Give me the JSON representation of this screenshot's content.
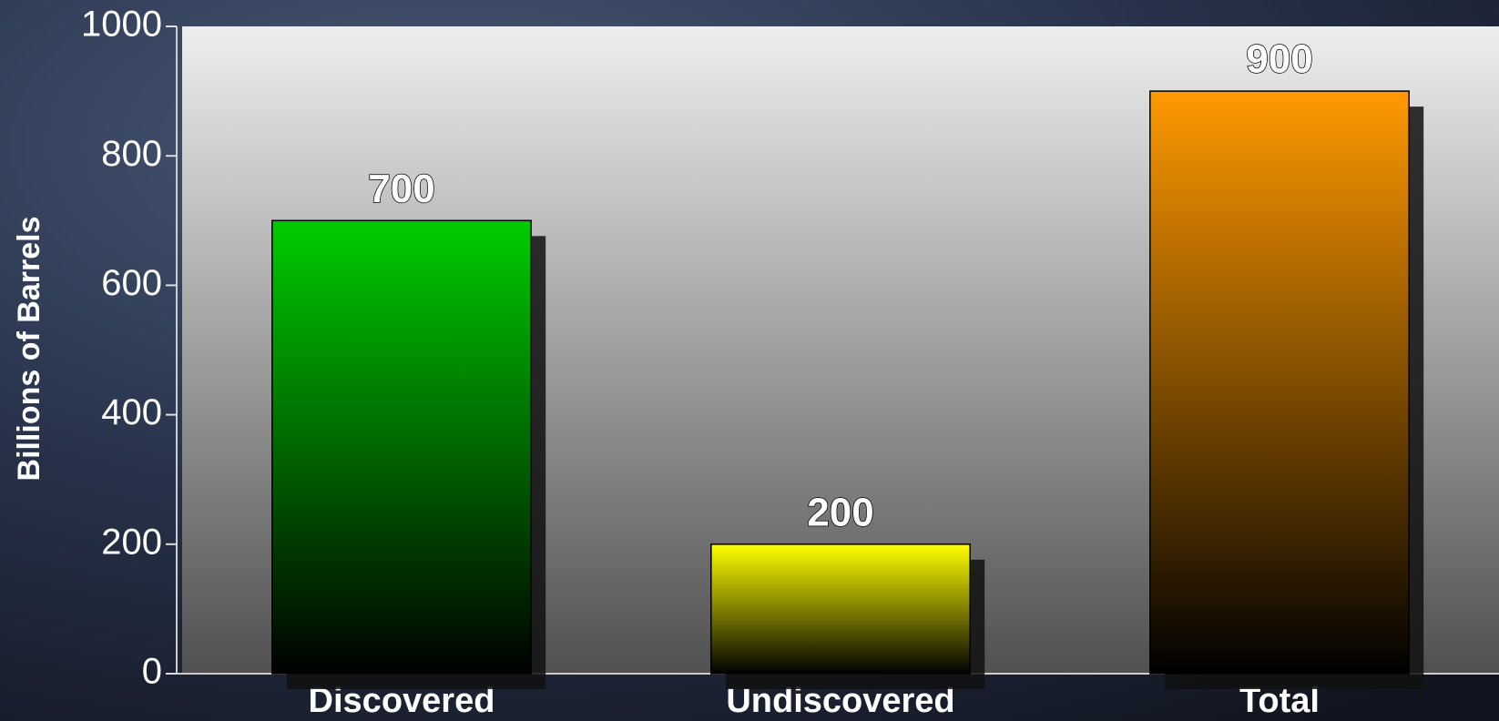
{
  "chart_data": {
    "type": "bar",
    "y_label": "Billions of Barrels",
    "categories": [
      "Discovered",
      "Undiscovered",
      "Total"
    ],
    "values": [
      700,
      200,
      900
    ],
    "colors": [
      "#00cc00",
      "#ffff00",
      "#ff9900"
    ],
    "ylim": [
      0,
      1000
    ],
    "yticks": [
      0,
      200,
      400,
      600,
      800,
      1000
    ]
  }
}
